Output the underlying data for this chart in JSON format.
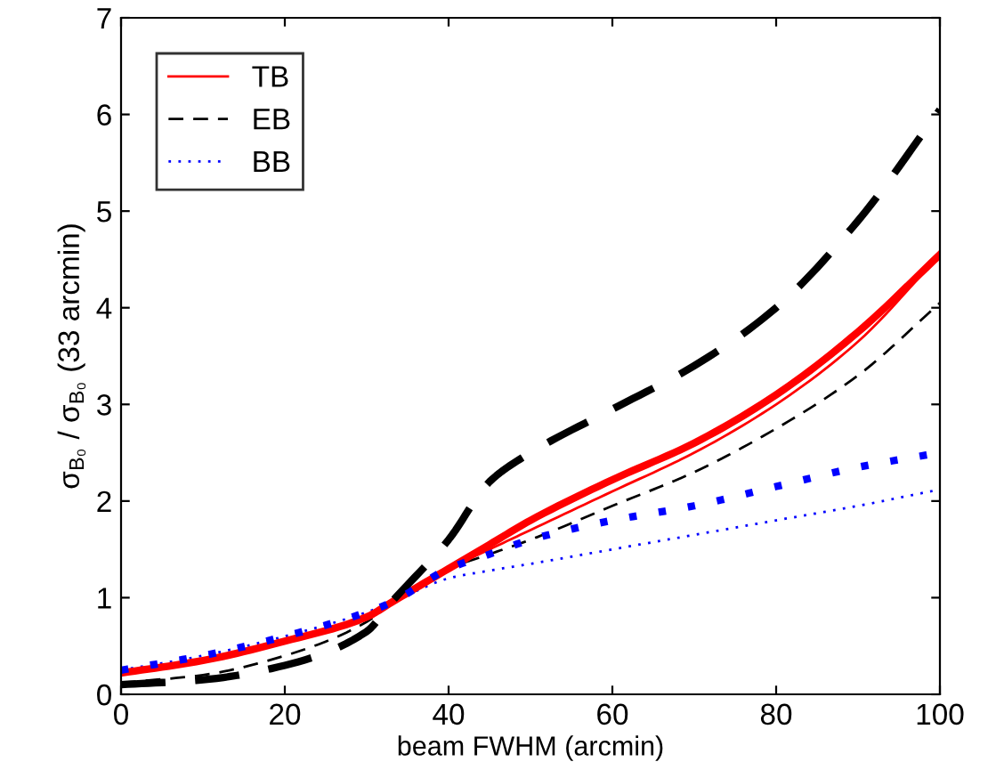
{
  "chart_data": {
    "type": "line",
    "xlabel": "beam FWHM (arcmin)",
    "ylabel": "σ$_{B₀}$ / σ$_{B₀}$ (33 arcmin)",
    "x": [
      0,
      10,
      20,
      30,
      33,
      40,
      45,
      50,
      60,
      70,
      80,
      90,
      100
    ],
    "series": [
      {
        "name": "TB",
        "color": "#ff0000",
        "line_style": "solid",
        "values": [
          0.22,
          0.35,
          0.55,
          0.8,
          0.95,
          1.3,
          1.5,
          1.7,
          2.1,
          2.5,
          3.0,
          3.65,
          4.55
        ]
      },
      {
        "name": "EB",
        "color": "#000000",
        "line_style": "dashed",
        "values": [
          0.12,
          0.2,
          0.4,
          0.75,
          0.95,
          1.3,
          1.45,
          1.6,
          1.95,
          2.3,
          2.75,
          3.3,
          4.05
        ]
      },
      {
        "name": "BB",
        "color": "#0000ff",
        "line_style": "dotted",
        "values": [
          0.25,
          0.4,
          0.6,
          0.85,
          0.95,
          1.2,
          1.28,
          1.35,
          1.5,
          1.65,
          1.8,
          1.95,
          2.12
        ]
      },
      {
        "color": "#ff0000",
        "line_style": "solid",
        "values": [
          0.22,
          0.35,
          0.55,
          0.8,
          0.95,
          1.3,
          1.55,
          1.8,
          2.22,
          2.6,
          3.1,
          3.75,
          4.55
        ]
      },
      {
        "color": "#000000",
        "line_style": "dashed",
        "values": [
          0.1,
          0.15,
          0.3,
          0.65,
          0.95,
          1.6,
          2.2,
          2.5,
          2.95,
          3.4,
          4.0,
          4.9,
          6.05
        ]
      },
      {
        "color": "#0000ff",
        "line_style": "dotted",
        "values": [
          0.25,
          0.4,
          0.6,
          0.85,
          0.95,
          1.3,
          1.45,
          1.6,
          1.8,
          1.95,
          2.15,
          2.35,
          2.5
        ]
      }
    ],
    "xlim": [
      0,
      100
    ],
    "xticks": [
      0,
      20,
      40,
      60,
      80,
      100
    ],
    "ylim": [
      0,
      7
    ],
    "yticks": [
      0,
      1,
      2,
      3,
      4,
      5,
      6,
      7
    ],
    "legend": "top left",
    "grid": false
  }
}
